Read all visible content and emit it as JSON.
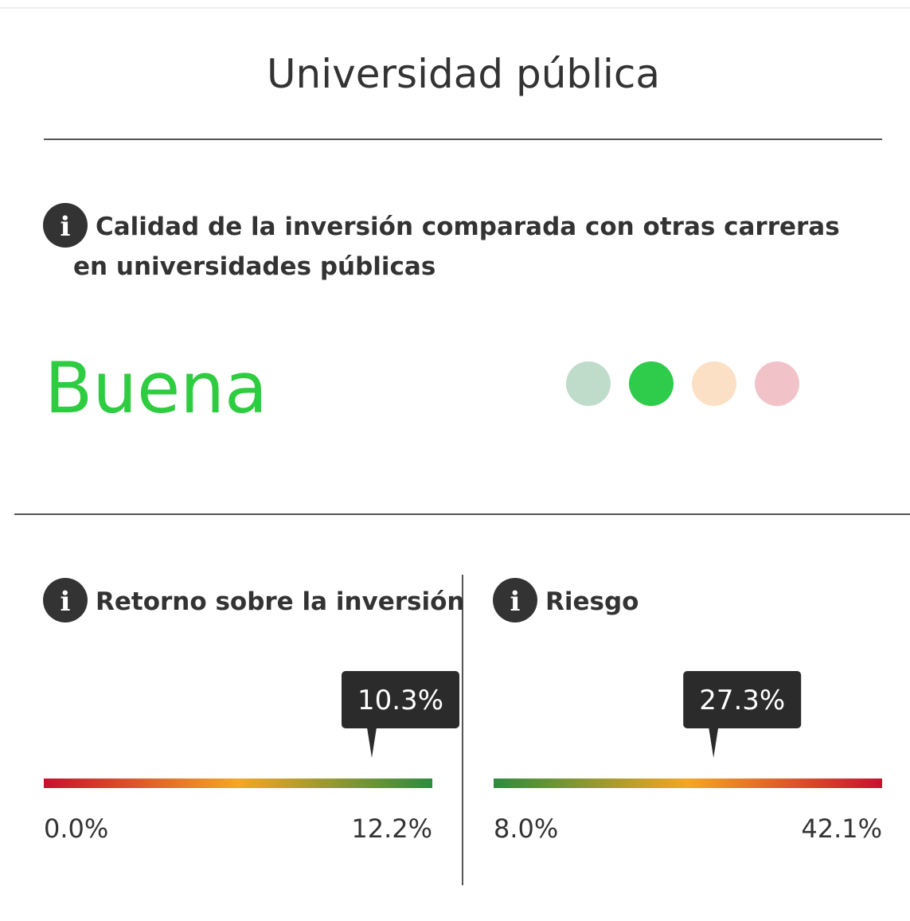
{
  "header": {
    "title": "Universidad pública"
  },
  "quality": {
    "heading": "Calidad de la inversión comparada con otras carreras en universidades públicas",
    "rating": "Buena",
    "rating_color": "#2ecc40",
    "dots": [
      "#bfdccb",
      "#2ecc4a",
      "#fbe0c6",
      "#f2c2c9"
    ],
    "active": 1
  },
  "gauges": [
    {
      "heading": "Retorno sobre la inversión",
      "value": {
        "value": 10.3,
        "label": "10.3%"
      },
      "min": {
        "value": 0.0,
        "label": "0.0%"
      },
      "max": {
        "value": 12.2,
        "label": "12.2%"
      },
      "colors": [
        "#c8102e",
        "#f5a623",
        "#2e8b3e"
      ]
    },
    {
      "heading": "Riesgo",
      "value": {
        "value": 27.3,
        "label": "27.3%"
      },
      "min": {
        "value": 8.0,
        "label": "8.0%"
      },
      "max": {
        "value": 42.1,
        "label": "42.1%"
      },
      "colors": [
        "#2e8b3e",
        "#f5a623",
        "#c8102e"
      ]
    }
  ]
}
